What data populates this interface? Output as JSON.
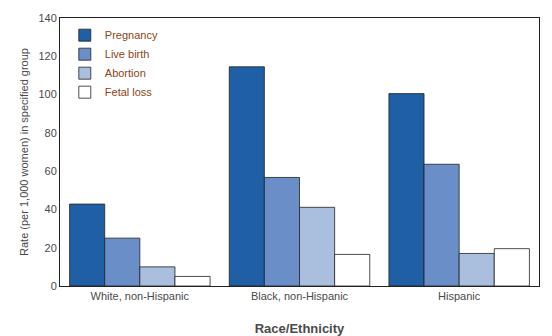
{
  "chart_data": {
    "type": "bar",
    "xlabel": "Race/Ethnicity",
    "ylabel": "Rate (per 1,000 women) in specified group",
    "categories": [
      "White, non-Hispanic",
      "Black, non-Hispanic",
      "Hispanic"
    ],
    "series": [
      {
        "name": "Pregnancy",
        "color": "#1F5FA6",
        "values": [
          42.8,
          114.5,
          100.5
        ]
      },
      {
        "name": "Live birth",
        "color": "#6A8FC8",
        "values": [
          25.0,
          56.7,
          63.6
        ]
      },
      {
        "name": "Abortion",
        "color": "#AABFDD",
        "values": [
          10.0,
          41.1,
          17.0
        ]
      },
      {
        "name": "Fetal loss",
        "color": "#FFFFFF",
        "values": [
          5.0,
          16.5,
          19.5
        ]
      }
    ],
    "ylim": [
      0,
      140
    ],
    "yticks": [
      0,
      20,
      40,
      60,
      80,
      100,
      120,
      140
    ],
    "grid": false,
    "legend": "upper left"
  }
}
